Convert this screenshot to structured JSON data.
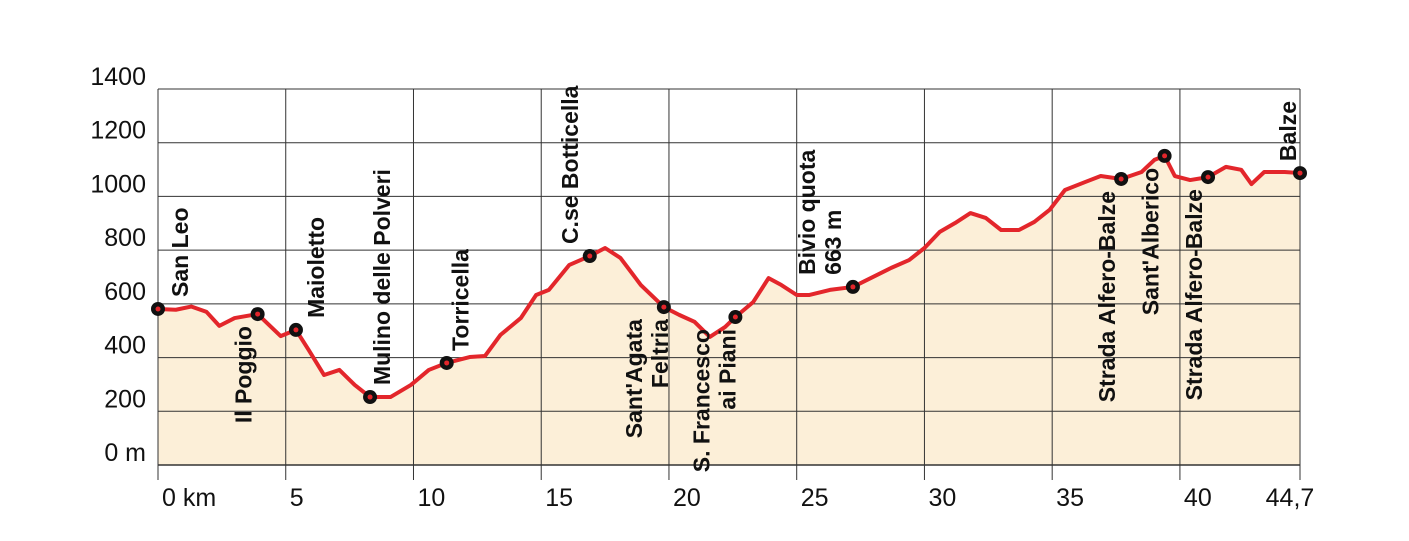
{
  "chart_data": {
    "type": "area",
    "x": [
      0,
      0.7,
      1.3,
      1.9,
      2.4,
      3.0,
      3.9,
      4.8,
      5.4,
      5.9,
      6.5,
      7.1,
      7.7,
      8.3,
      9.1,
      9.9,
      10.6,
      11.3,
      12.2,
      12.8,
      13.4,
      14.2,
      14.8,
      15.3,
      16.1,
      16.9,
      17.5,
      18.1,
      18.9,
      19.8,
      20.4,
      21.0,
      21.6,
      22.2,
      22.6,
      23.3,
      23.9,
      24.4,
      25.0,
      25.5,
      26.3,
      27.2,
      27.9,
      28.7,
      29.4,
      30.0,
      30.6,
      31.2,
      31.8,
      32.4,
      33.0,
      33.7,
      34.3,
      34.9,
      35.5,
      36.3,
      36.9,
      37.7,
      38.5,
      39.0,
      39.4,
      39.8,
      40.4,
      41.1,
      41.8,
      42.4,
      42.8,
      43.3,
      44.1,
      44.7
    ],
    "values": [
      581,
      578,
      590,
      570,
      518,
      547,
      562,
      480,
      503,
      428,
      335,
      354,
      298,
      253,
      253,
      298,
      354,
      380,
      402,
      406,
      484,
      547,
      633,
      652,
      745,
      778,
      808,
      771,
      670,
      588,
      559,
      533,
      477,
      514,
      551,
      607,
      696,
      670,
      633,
      633,
      652,
      663,
      696,
      734,
      763,
      808,
      868,
      901,
      938,
      920,
      875,
      875,
      905,
      950,
      1024,
      1054,
      1076,
      1065,
      1091,
      1136,
      1151,
      1076,
      1061,
      1072,
      1110,
      1099,
      1046,
      1091,
      1091,
      1087
    ],
    "color": "#e3262b",
    "fill": "#fcefd8",
    "xlim": [
      0,
      44.7
    ],
    "ylim": [
      0,
      1400
    ],
    "xticks": [
      {
        "value": 0,
        "label": "0 km"
      },
      5,
      10,
      15,
      20,
      25,
      30,
      35,
      40,
      {
        "value": 44.7,
        "label": "44,7"
      }
    ],
    "yticks": [
      {
        "value": 0,
        "label": "0 m"
      },
      200,
      400,
      600,
      800,
      1000,
      1200,
      1400
    ],
    "grid": true,
    "waypoints": [
      {
        "label": [
          "San Leo"
        ],
        "x": 0,
        "y": 581
      },
      {
        "label": [
          "Il Poggio"
        ],
        "x": 3.9,
        "y": 562
      },
      {
        "label": [
          "Maioletto"
        ],
        "x": 5.4,
        "y": 503
      },
      {
        "label": [
          "Mulino delle Polveri"
        ],
        "x": 8.3,
        "y": 253
      },
      {
        "label": [
          "Torricella"
        ],
        "x": 11.3,
        "y": 380
      },
      {
        "label": [
          "C.se Botticella"
        ],
        "x": 16.9,
        "y": 778
      },
      {
        "label": [
          "Sant'Agata",
          "Feltria"
        ],
        "x": 19.8,
        "y": 588
      },
      {
        "label": [
          "S. Francesco",
          "ai Piani"
        ],
        "x": 22.6,
        "y": 551
      },
      {
        "label": [
          "Bivio quota",
          "663 m"
        ],
        "x": 27.2,
        "y": 663
      },
      {
        "label": [
          "Strada Alfero-Balze"
        ],
        "x": 37.7,
        "y": 1065
      },
      {
        "label": [
          "Sant'Alberico"
        ],
        "x": 39.4,
        "y": 1151
      },
      {
        "label": [
          "Strada Alfero-Balze"
        ],
        "x": 41.1,
        "y": 1072
      },
      {
        "label": [
          "Balze"
        ],
        "x": 44.7,
        "y": 1087
      }
    ]
  }
}
